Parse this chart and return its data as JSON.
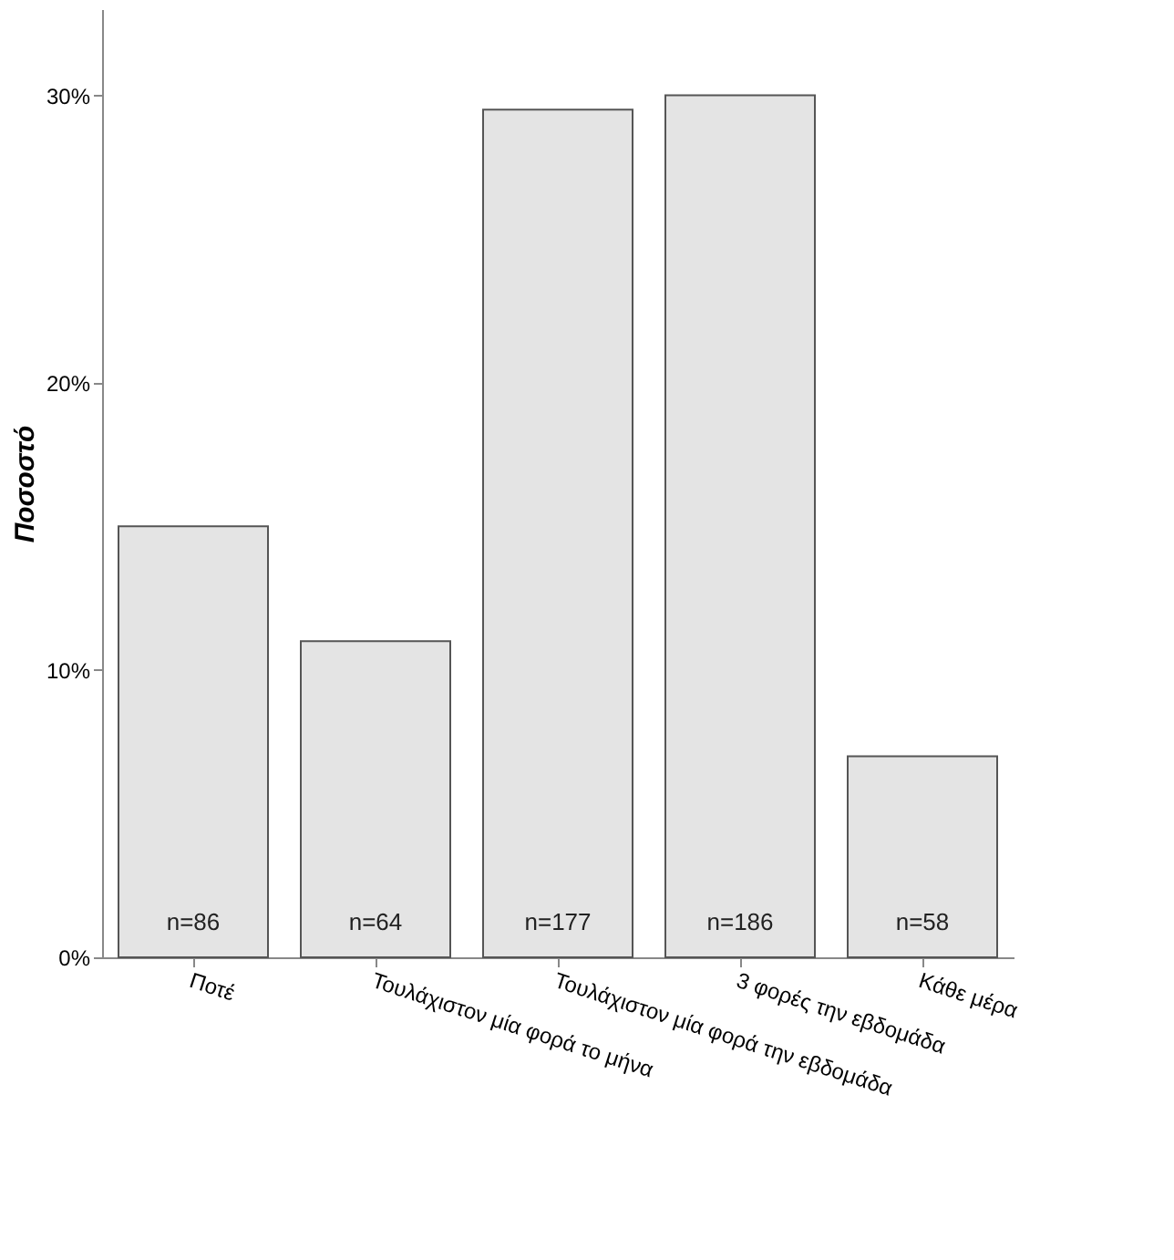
{
  "chart_data": {
    "type": "bar",
    "ylabel": "Ποσοστό",
    "categories": [
      "Ποτέ",
      "Τουλάχιστον μία φορά το μήνα",
      "Τουλάχιστον μία φορά την εβδομάδα",
      "3 φορές την εβδομάδα",
      "Κάθε μέρα"
    ],
    "values": [
      15,
      11,
      29.5,
      30,
      7
    ],
    "annotations": [
      {
        "text": "n=86",
        "x": "Ποτέ",
        "y": 0
      },
      {
        "text": "n=64",
        "x": "Τουλάχιστον μία φορά το μήνα",
        "y": 0
      },
      {
        "text": "n=177",
        "x": "Τουλάχιστον μία φορά την εβδομάδα",
        "y": 0
      },
      {
        "text": "n=186",
        "x": "3 φορές την εβδομάδα",
        "y": 0
      },
      {
        "text": "n=58",
        "x": "Κάθε μέρα",
        "y": 0
      }
    ],
    "color": "#e4e4e4",
    "ylim": [
      0,
      33
    ],
    "yticks": [
      {
        "value": 0,
        "label": "0%"
      },
      {
        "value": 10,
        "label": "10%"
      },
      {
        "value": 20,
        "label": "20%"
      },
      {
        "value": 30,
        "label": "30%"
      }
    ],
    "grid": false
  }
}
